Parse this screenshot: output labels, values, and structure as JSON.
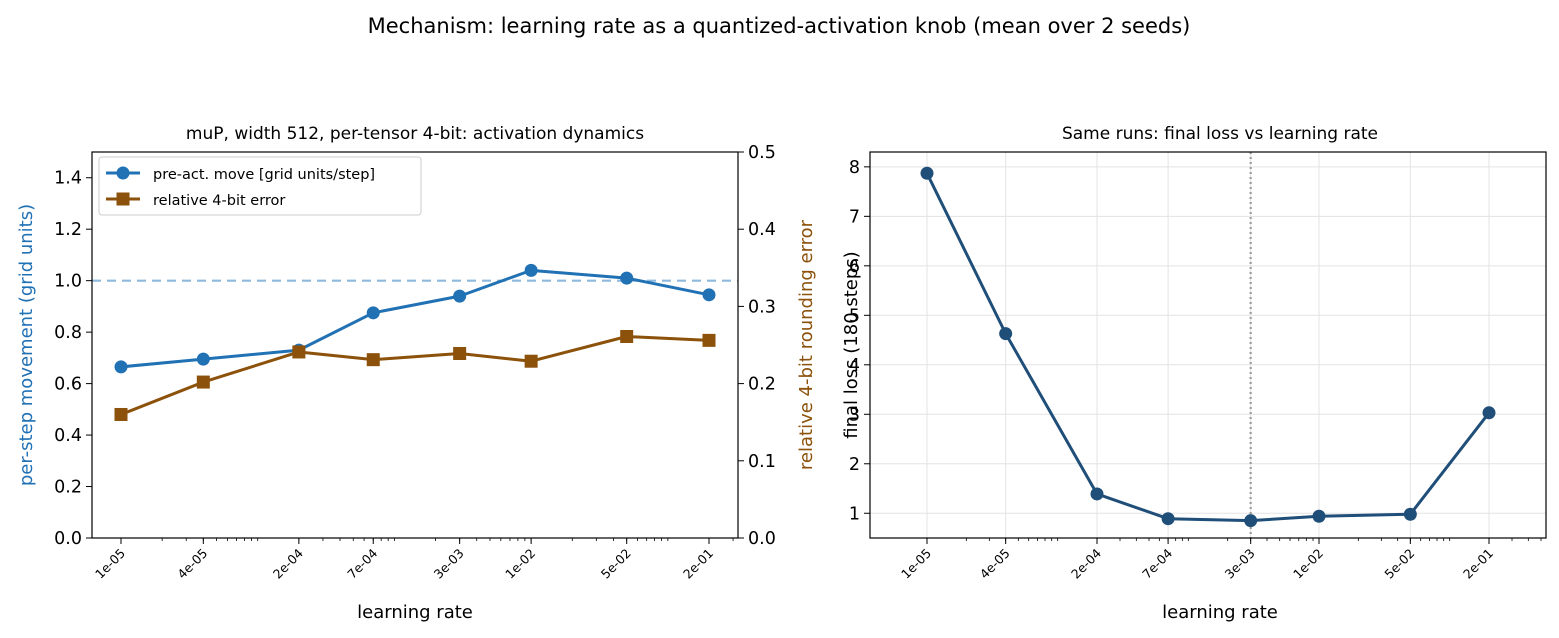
{
  "figure": {
    "suptitle": "Mechanism: learning rate as a quantized-activation knob (mean over 2 seeds)"
  },
  "colors": {
    "move": "#2171b5",
    "error": "#8c510a",
    "loss": "#1f4e79",
    "reference_line": "#8fb8de",
    "vline": "#9e9e9e"
  },
  "chart_data": [
    {
      "type": "line",
      "title": "muP, width 512, per-tensor 4-bit: activation dynamics",
      "xlabel": "learning rate",
      "x_scale": "log",
      "x_tick_labels": [
        "1e-05",
        "4e-05",
        "2e-04",
        "7e-04",
        "3e-03",
        "1e-02",
        "5e-02",
        "2e-01"
      ],
      "x": [
        1e-05,
        4e-05,
        0.0002,
        0.0007,
        0.003,
        0.01,
        0.05,
        0.2
      ],
      "ylabel": "per-step movement (grid units)",
      "ylim": [
        0,
        1.5
      ],
      "yticks": [
        0.0,
        0.2,
        0.4,
        0.6,
        0.8,
        1.0,
        1.2,
        1.4
      ],
      "y2label": "relative 4-bit rounding error",
      "y2lim": [
        0,
        0.5
      ],
      "y2ticks": [
        0.0,
        0.1,
        0.2,
        0.3,
        0.4,
        0.5
      ],
      "reference_line": {
        "axis": "y",
        "value": 1.0,
        "style": "dashed"
      },
      "legend_position": "upper-left",
      "grid": false,
      "series": [
        {
          "name": "pre-act. move [grid units/step]",
          "axis": "left",
          "marker": "circle",
          "values": [
            0.665,
            0.695,
            0.73,
            0.875,
            0.94,
            1.04,
            1.01,
            0.945
          ]
        },
        {
          "name": "relative 4-bit error",
          "axis": "right",
          "marker": "square",
          "values": [
            0.16,
            0.202,
            0.241,
            0.231,
            0.239,
            0.229,
            0.261,
            0.256
          ]
        }
      ]
    },
    {
      "type": "line",
      "title": "Same runs: final loss vs learning rate",
      "xlabel": "learning rate",
      "x_scale": "log",
      "x_tick_labels": [
        "1e-05",
        "4e-05",
        "2e-04",
        "7e-04",
        "3e-03",
        "1e-02",
        "5e-02",
        "2e-01"
      ],
      "x": [
        1e-05,
        4e-05,
        0.0002,
        0.0007,
        0.003,
        0.01,
        0.05,
        0.2
      ],
      "ylabel": "final loss (180 steps)",
      "ylim": [
        0.5,
        8.3
      ],
      "yticks": [
        1,
        2,
        3,
        4,
        5,
        6,
        7,
        8
      ],
      "grid": true,
      "vertical_line": {
        "x": 0.003,
        "style": "dotted"
      },
      "series": [
        {
          "axis": "left",
          "marker": "circle",
          "values": [
            7.87,
            4.63,
            1.39,
            0.89,
            0.85,
            0.94,
            0.98,
            3.03
          ]
        }
      ]
    }
  ]
}
